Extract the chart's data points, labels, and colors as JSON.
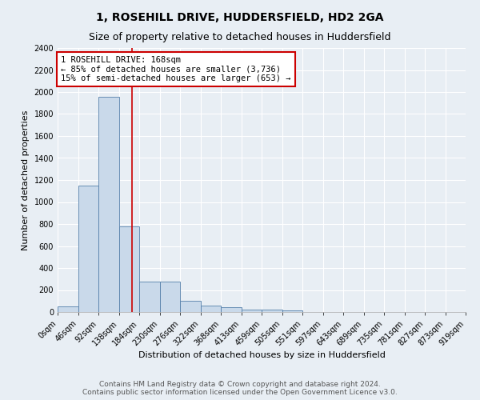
{
  "title": "1, ROSEHILL DRIVE, HUDDERSFIELD, HD2 2GA",
  "subtitle": "Size of property relative to detached houses in Huddersfield",
  "xlabel": "Distribution of detached houses by size in Huddersfield",
  "ylabel": "Number of detached properties",
  "bin_labels": [
    "0sqm",
    "46sqm",
    "92sqm",
    "138sqm",
    "184sqm",
    "230sqm",
    "276sqm",
    "322sqm",
    "368sqm",
    "413sqm",
    "459sqm",
    "505sqm",
    "551sqm",
    "597sqm",
    "643sqm",
    "689sqm",
    "735sqm",
    "781sqm",
    "827sqm",
    "873sqm",
    "919sqm"
  ],
  "bar_values": [
    50,
    1150,
    1960,
    780,
    280,
    280,
    105,
    55,
    45,
    25,
    25,
    15,
    0,
    0,
    0,
    0,
    0,
    0,
    0,
    0
  ],
  "bar_color": "#c9d9ea",
  "bar_edge_color": "#5580aa",
  "property_line_x": 168,
  "bin_width": 46,
  "annotation_text": "1 ROSEHILL DRIVE: 168sqm\n← 85% of detached houses are smaller (3,736)\n15% of semi-detached houses are larger (653) →",
  "annotation_box_color": "#ffffff",
  "annotation_box_edge_color": "#cc0000",
  "annotation_text_color": "#000000",
  "vline_color": "#cc0000",
  "ylim": [
    0,
    2400
  ],
  "yticks": [
    0,
    200,
    400,
    600,
    800,
    1000,
    1200,
    1400,
    1600,
    1800,
    2000,
    2200,
    2400
  ],
  "footer_text": "Contains HM Land Registry data © Crown copyright and database right 2024.\nContains public sector information licensed under the Open Government Licence v3.0.",
  "background_color": "#e8eef4",
  "plot_bg_color": "#e8eef4",
  "title_fontsize": 10,
  "subtitle_fontsize": 9,
  "axis_label_fontsize": 8,
  "tick_fontsize": 7,
  "annotation_fontsize": 7.5,
  "footer_fontsize": 6.5
}
